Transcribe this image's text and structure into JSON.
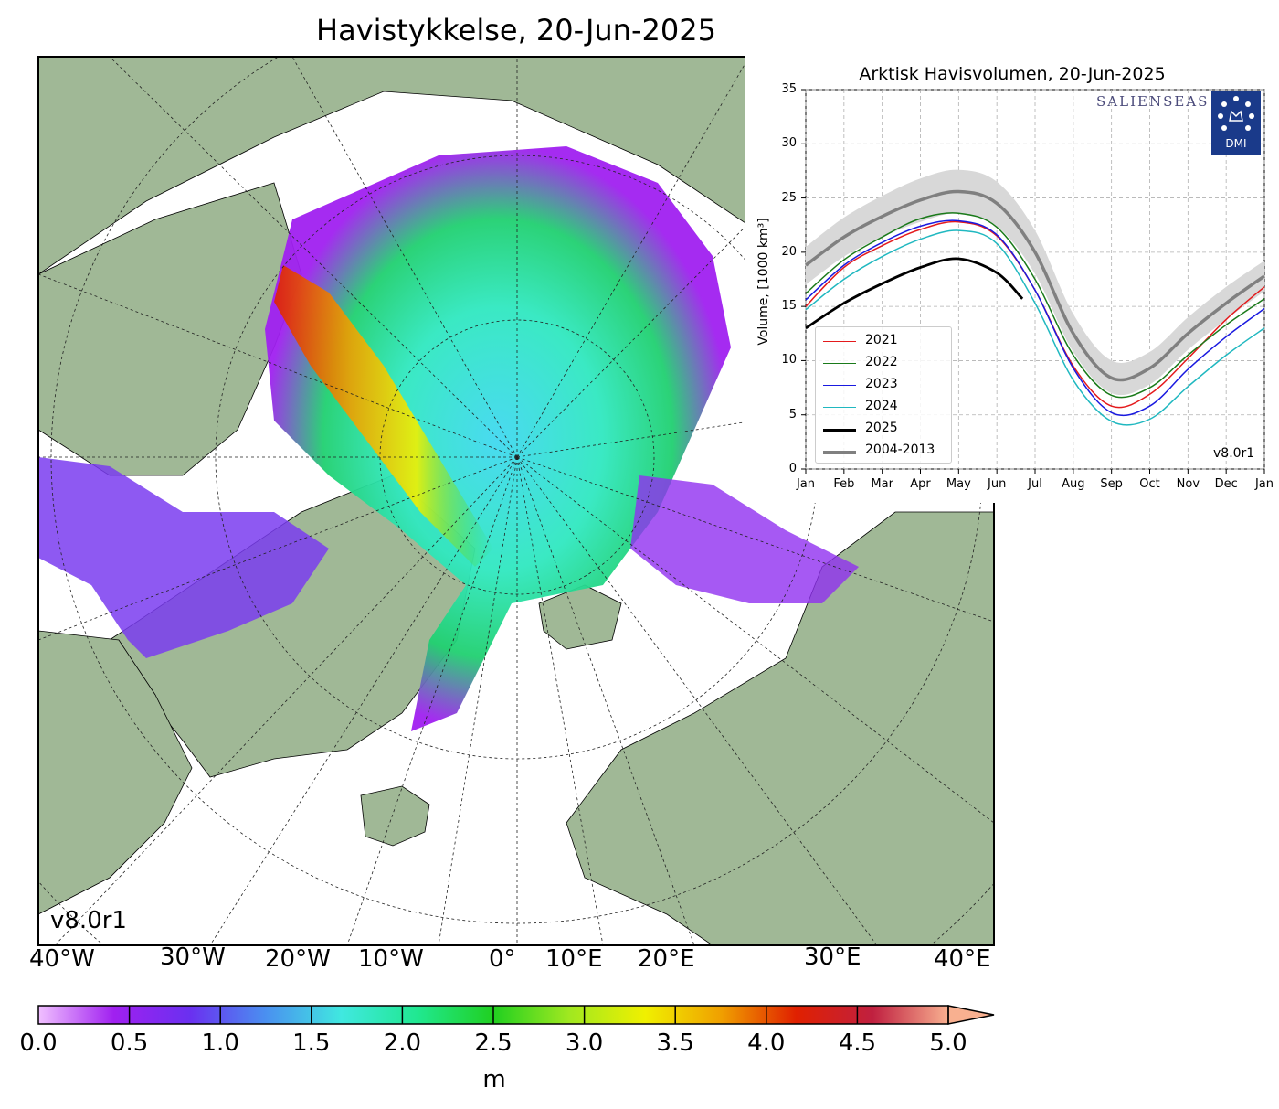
{
  "map": {
    "title": "Havistykkelse, 20-Jun-2025",
    "version": "v8.0r1",
    "longitude_labels": [
      "40°W",
      "30°W",
      "20°W",
      "10°W",
      "0°",
      "10°E",
      "20°E",
      "30°E",
      "40°E"
    ],
    "colorbar": {
      "ticks": [
        "0.0",
        "0.5",
        "1.0",
        "1.5",
        "2.0",
        "2.5",
        "3.0",
        "3.5",
        "4.0",
        "4.5",
        "5.0"
      ],
      "unit": "m",
      "colors": [
        "#f0c0ff",
        "#a020f0",
        "#6a30f0",
        "#4a90f0",
        "#40e8e0",
        "#20e890",
        "#20d020",
        "#a0e820",
        "#f0f000",
        "#f0a000",
        "#e02000",
        "#c02040",
        "#f8b090"
      ]
    },
    "land_color": "#a0b896",
    "ocean_color": "#ffffff"
  },
  "chart_data": {
    "type": "line",
    "title": "Arktisk Havisvolumen, 20-Jun-2025",
    "ylabel": "Volume, [1000 km³]",
    "ylim": [
      0,
      35
    ],
    "yticks": [
      "0",
      "5",
      "10",
      "15",
      "20",
      "25",
      "30",
      "35"
    ],
    "months": [
      "Jan",
      "Feb",
      "Mar",
      "Apr",
      "May",
      "Jun",
      "Jul",
      "Aug",
      "Sep",
      "Oct",
      "Nov",
      "Dec",
      "Jan"
    ],
    "grid": true,
    "legend_placement": "lower-left",
    "version": "v8.0r1",
    "brand": "SALIENSEAS",
    "logo_text": "DMI",
    "climatology": {
      "name": "2004-2013",
      "color": "#808080",
      "x": [
        0,
        1,
        2,
        3,
        4,
        5,
        6,
        7,
        8,
        9,
        10,
        11,
        12
      ],
      "mean": [
        18.8,
        21.4,
        23.3,
        24.8,
        25.6,
        24.5,
        20.0,
        12.5,
        8.4,
        9.3,
        12.5,
        15.3,
        17.8
      ],
      "band_low": [
        17.0,
        19.6,
        21.4,
        22.8,
        23.6,
        22.4,
        18.0,
        10.8,
        7.0,
        7.8,
        11.0,
        13.8,
        16.4
      ],
      "band_high": [
        20.5,
        23.2,
        25.2,
        26.8,
        27.6,
        26.5,
        22.0,
        14.3,
        10.0,
        10.8,
        14.0,
        16.8,
        19.2
      ]
    },
    "series": [
      {
        "name": "2021",
        "color": "#e41a1c",
        "x": [
          0,
          1,
          2,
          3,
          4,
          5,
          6,
          7,
          8,
          9,
          10,
          11,
          12
        ],
        "values": [
          15.0,
          18.6,
          20.6,
          22.1,
          22.8,
          21.5,
          16.5,
          9.5,
          5.8,
          6.9,
          10.2,
          13.8,
          16.8
        ]
      },
      {
        "name": "2022",
        "color": "#1a7a1a",
        "x": [
          0,
          1,
          2,
          3,
          4,
          5,
          6,
          7,
          8,
          9,
          10,
          11,
          12
        ],
        "values": [
          16.2,
          19.3,
          21.4,
          23.1,
          23.6,
          22.3,
          17.5,
          10.5,
          6.8,
          7.5,
          10.5,
          13.3,
          15.7
        ]
      },
      {
        "name": "2023",
        "color": "#1a1ae0",
        "x": [
          0,
          1,
          2,
          3,
          4,
          5,
          6,
          7,
          8,
          9,
          10,
          11,
          12
        ],
        "values": [
          15.6,
          18.8,
          20.9,
          22.4,
          22.9,
          21.6,
          16.5,
          9.3,
          5.2,
          5.8,
          9.2,
          12.2,
          14.8
        ]
      },
      {
        "name": "2024",
        "color": "#20b8c0",
        "x": [
          0,
          1,
          2,
          3,
          4,
          5,
          6,
          7,
          8,
          9,
          10,
          11,
          12
        ],
        "values": [
          14.7,
          17.5,
          19.6,
          21.2,
          22.0,
          20.8,
          15.3,
          8.2,
          4.4,
          4.6,
          7.6,
          10.5,
          13.0
        ]
      },
      {
        "name": "2025",
        "color": "#000000",
        "x": [
          0,
          1,
          2,
          3,
          4,
          5,
          5.67
        ],
        "values": [
          13.0,
          15.3,
          17.1,
          18.6,
          19.4,
          18.1,
          15.7
        ]
      }
    ]
  }
}
